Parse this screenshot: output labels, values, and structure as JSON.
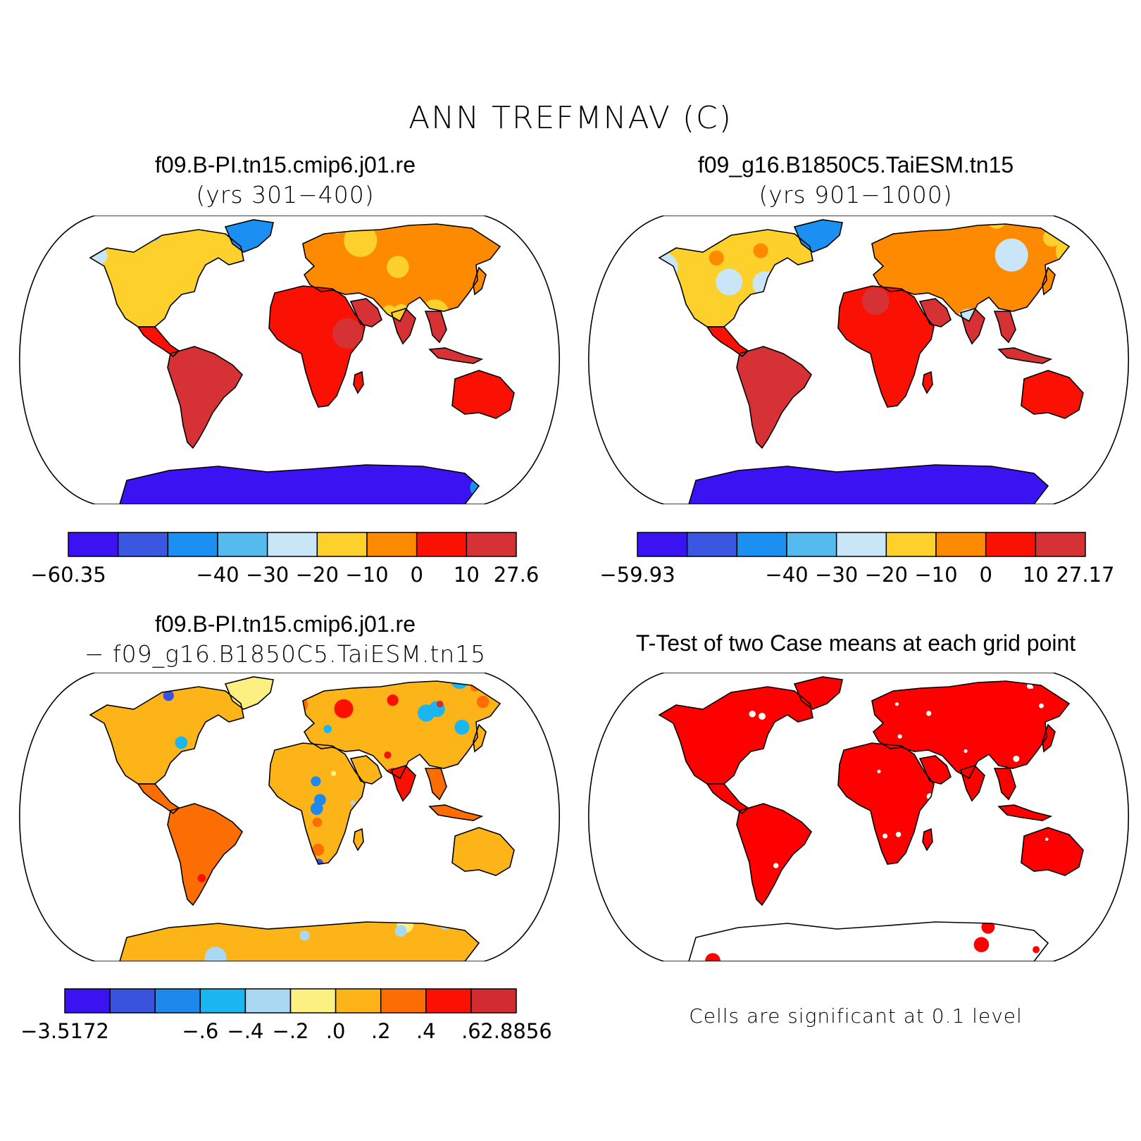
{
  "figure": {
    "title": "ANN TREFMNAV (C)"
  },
  "panels": [
    {
      "id": "case1",
      "case_name": "f09.B-PI.tn15.cmip6.j01.re",
      "subtitle": "(yrs 301−400)",
      "colorbar": {
        "colors": [
          "#3b12f2",
          "#3957e0",
          "#1c8ff2",
          "#55bbee",
          "#c8e6f7",
          "#fdd02b",
          "#fd8a00",
          "#fb1004",
          "#d63236"
        ],
        "labels": [
          "−60.35",
          "−40",
          "−30",
          "−20",
          "−10",
          "0",
          "10",
          "27.6"
        ]
      }
    },
    {
      "id": "case2",
      "case_name": "f09_g16.B1850C5.TaiESM.tn15",
      "subtitle": "(yrs 901−1000)",
      "colorbar": {
        "colors": [
          "#3b12f2",
          "#3957e0",
          "#1c8ff2",
          "#55bbee",
          "#c8e6f7",
          "#fdd02b",
          "#fd8a00",
          "#fb1004",
          "#d63236"
        ],
        "labels": [
          "−59.93",
          "−40",
          "−30",
          "−20",
          "−10",
          "0",
          "10",
          "27.17"
        ]
      }
    },
    {
      "id": "difference",
      "case_name": "f09.B-PI.tn15.cmip6.j01.re",
      "subtitle": "−  f09_g16.B1850C5.TaiESM.tn15",
      "colorbar": {
        "colors": [
          "#3b12f2",
          "#3953de",
          "#1f88ec",
          "#19b6f2",
          "#a8d8f2",
          "#fdf083",
          "#fdb419",
          "#fc6d04",
          "#fb1002",
          "#d22c30"
        ],
        "labels": [
          "−3.5172",
          "−.6",
          "−.4",
          "−.2",
          ".0",
          ".2",
          ".4",
          ".6",
          "2.8856"
        ]
      }
    },
    {
      "id": "ttest",
      "case_name": "T-Test of two Case means at each grid point",
      "note": "Cells are significant at 0.1 level",
      "color": "#ff0000"
    }
  ]
}
